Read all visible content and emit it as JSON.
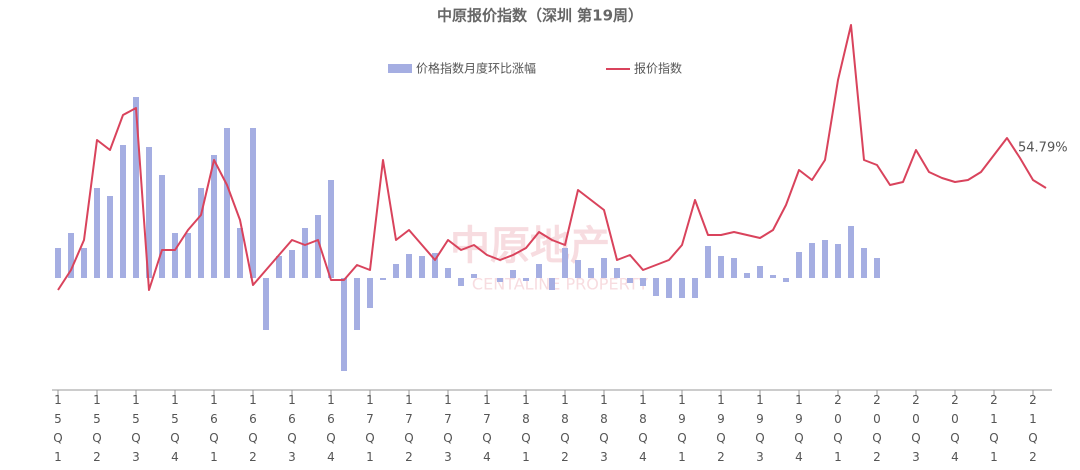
{
  "chart_data": {
    "type": "bar_line",
    "title": "中原报价指数（深圳 第19周）",
    "watermark": [
      "中原地产",
      "CENTALINE PROPERTY"
    ],
    "annotation": "54.79%",
    "categories": [
      "15Q1",
      null,
      null,
      "15Q2",
      null,
      null,
      "15Q3",
      null,
      null,
      "15Q4",
      null,
      null,
      "16Q1",
      null,
      null,
      "16Q2",
      null,
      null,
      "16Q3",
      null,
      null,
      "16Q4",
      null,
      null,
      "17Q1",
      null,
      null,
      "17Q2",
      null,
      null,
      "17Q3",
      null,
      null,
      "17Q4",
      null,
      null,
      "18Q1",
      null,
      null,
      "18Q2",
      null,
      null,
      "18Q3",
      null,
      null,
      "18Q4",
      null,
      null,
      "19Q1",
      null,
      null,
      "19Q2",
      null,
      null,
      "19Q3",
      null,
      null,
      "19Q4",
      null,
      null,
      "20Q1",
      null,
      null,
      "20Q2",
      null,
      null,
      "20Q3",
      null,
      null,
      "20Q4",
      null,
      null,
      "21Q1",
      null,
      null,
      "21Q2",
      null
    ],
    "ylim": [
      0,
      360
    ],
    "y2lim": [
      -102,
      258
    ],
    "series": [
      {
        "name": "价格指数月度环比涨幅",
        "type": "bar",
        "axis": "y2",
        "color": "#a5aee2",
        "values": [
          30,
          45,
          30,
          90,
          82,
          133,
          181,
          131,
          103,
          45,
          45,
          90,
          123,
          150,
          50,
          150,
          -52,
          22,
          28,
          50,
          63,
          98,
          -93,
          -52,
          -30,
          -2,
          14,
          24,
          22,
          25,
          10,
          -8,
          4,
          0,
          -4,
          8,
          -3,
          14,
          -12,
          30,
          18,
          10,
          20,
          10,
          -5,
          -8,
          -18,
          -20,
          -20,
          -20,
          32,
          22,
          20,
          5,
          12,
          3,
          -4,
          26,
          35,
          38,
          34,
          52,
          30,
          20,
          null,
          null,
          null,
          null,
          null,
          null,
          null,
          null,
          null,
          null,
          null,
          null,
          null
        ]
      },
      {
        "name": "报价指数",
        "type": "line",
        "color": "#d9435c",
        "values": [
          90,
          110,
          140,
          240,
          230,
          265,
          272,
          90,
          130,
          130,
          150,
          165,
          220,
          195,
          160,
          95,
          110,
          125,
          140,
          135,
          140,
          100,
          100,
          115,
          110,
          220,
          140,
          150,
          135,
          120,
          140,
          130,
          135,
          125,
          120,
          125,
          132,
          148,
          140,
          135,
          190,
          180,
          170,
          120,
          125,
          110,
          115,
          120,
          135,
          180,
          145,
          145,
          148,
          145,
          142,
          150,
          175,
          210,
          200,
          220,
          300,
          355,
          220,
          215,
          195,
          198,
          230,
          208,
          202,
          198,
          200,
          208,
          225,
          242,
          222,
          200,
          192
        ]
      }
    ]
  }
}
